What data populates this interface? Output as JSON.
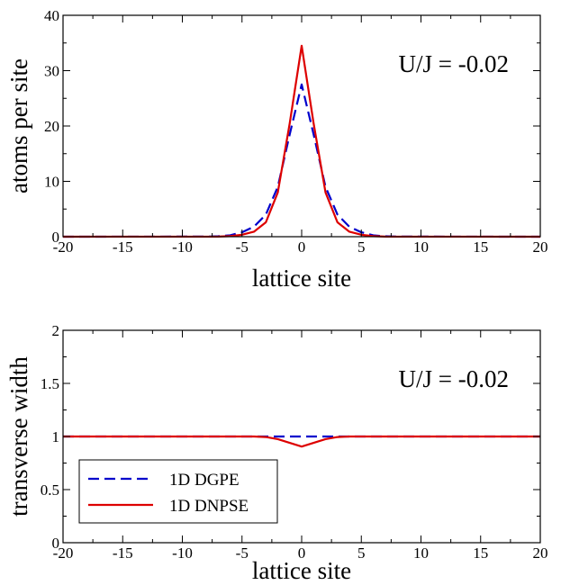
{
  "chart_data": [
    {
      "type": "line",
      "xlabel": "lattice site",
      "ylabel": "atoms per site",
      "annotation": "U/J = -0.02",
      "xlim": [
        -20,
        20
      ],
      "ylim": [
        0,
        40
      ],
      "xticks": [
        -20,
        -15,
        -10,
        -5,
        0,
        5,
        10,
        15,
        20
      ],
      "yticks": [
        0,
        10,
        20,
        30,
        40
      ],
      "x_tick_labels": [
        "-20",
        "-15",
        "-10",
        "-5",
        "0",
        "5",
        "10",
        "15",
        "20"
      ],
      "y_tick_labels": [
        "0",
        "10",
        "20",
        "30",
        "40"
      ],
      "grid": false,
      "series": [
        {
          "color": "#0000cc",
          "dash": true,
          "x": [
            -20,
            -8,
            -7,
            -6,
            -5,
            -4,
            -3,
            -2,
            -1,
            0,
            1,
            2,
            3,
            4,
            5,
            6,
            7,
            8,
            20
          ],
          "y": [
            0,
            0.02,
            0.08,
            0.25,
            0.8,
            1.8,
            4.0,
            9.0,
            18.5,
            27.5,
            18.5,
            9.0,
            4.0,
            1.8,
            0.8,
            0.25,
            0.08,
            0.02,
            0
          ]
        },
        {
          "color": "#dd0000",
          "dash": false,
          "x": [
            -20,
            -7,
            -6,
            -5,
            -4,
            -3,
            -2,
            -1,
            0,
            1,
            2,
            3,
            4,
            5,
            6,
            7,
            20
          ],
          "y": [
            0,
            0.02,
            0.1,
            0.35,
            0.9,
            2.6,
            8.0,
            20.5,
            34.5,
            20.5,
            8.0,
            2.6,
            0.9,
            0.35,
            0.1,
            0.02,
            0
          ]
        }
      ]
    },
    {
      "type": "line",
      "xlabel": "lattice site",
      "ylabel": "transverse width",
      "annotation": "U/J = -0.02",
      "xlim": [
        -20,
        20
      ],
      "ylim": [
        0,
        2
      ],
      "xticks": [
        -20,
        -15,
        -10,
        -5,
        0,
        5,
        10,
        15,
        20
      ],
      "yticks": [
        0,
        0.5,
        1,
        1.5,
        2
      ],
      "x_tick_labels": [
        "-20",
        "-15",
        "-10",
        "-5",
        "0",
        "5",
        "10",
        "15",
        "20"
      ],
      "y_tick_labels": [
        "0",
        "0.5",
        "1",
        "1.5",
        "2"
      ],
      "grid": false,
      "legend": {
        "placement": "bottom-left",
        "entries": [
          "1D DGPE",
          "1D DNPSE"
        ]
      },
      "series": [
        {
          "name": "1D DGPE",
          "color": "#0000cc",
          "dash": true,
          "x": [
            -20,
            20
          ],
          "y": [
            1.0,
            1.0
          ]
        },
        {
          "name": "1D DNPSE",
          "color": "#dd0000",
          "dash": false,
          "x": [
            -20,
            -4,
            -3,
            -2,
            -1,
            0,
            1,
            2,
            3,
            4,
            20
          ],
          "y": [
            1.0,
            1.0,
            0.995,
            0.975,
            0.94,
            0.905,
            0.94,
            0.975,
            0.995,
            1.0,
            1.0
          ]
        }
      ]
    }
  ]
}
